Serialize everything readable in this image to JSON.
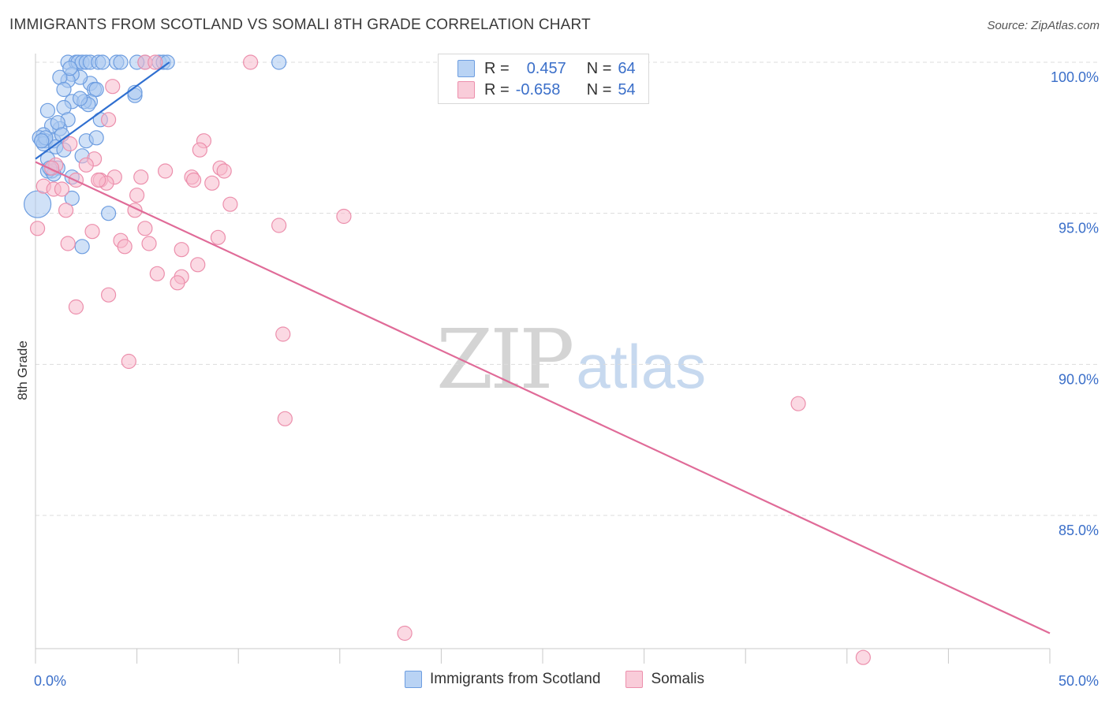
{
  "title": "IMMIGRANTS FROM SCOTLAND VS SOMALI 8TH GRADE CORRELATION CHART",
  "source": "Source: ZipAtlas.com",
  "watermark": {
    "zip": "ZIP",
    "atlas": "atlas"
  },
  "legend_top": {
    "r_label": "R =",
    "n_label": "N =",
    "rows": [
      {
        "r": "0.457",
        "n": "64"
      },
      {
        "r": "-0.658",
        "n": "54"
      }
    ]
  },
  "legend_bottom": [
    "Immigrants from Scotland",
    "Somalis"
  ],
  "colors": {
    "scotland_fill": "#a9c8f0",
    "scotland_stroke": "#6d9de0",
    "scotland_line": "#2f6fd0",
    "somali_fill": "#f7b9cc",
    "somali_stroke": "#ec8fac",
    "somali_line": "#e06b98",
    "axis_text": "#3b6fc9"
  },
  "chart_data": {
    "type": "scatter",
    "title": "IMMIGRANTS FROM SCOTLAND VS SOMALI 8TH GRADE CORRELATION CHART",
    "xlabel": "",
    "ylabel": "8th Grade",
    "xlim": [
      0,
      50
    ],
    "ylim": [
      80.0,
      100.4
    ],
    "x_tick_labels": [
      {
        "v": 0,
        "label": "0.0%"
      },
      {
        "v": 50,
        "label": "50.0%"
      }
    ],
    "x_minor_ticks": [
      0,
      5,
      10,
      15,
      20,
      25,
      30,
      35,
      40,
      45,
      50
    ],
    "y_ticks": [
      {
        "v": 100,
        "label": "100.0%"
      },
      {
        "v": 95,
        "label": "95.0%"
      },
      {
        "v": 90,
        "label": "90.0%"
      },
      {
        "v": 85,
        "label": "85.0%"
      }
    ],
    "grid": true,
    "series": [
      {
        "name": "Immigrants from Scotland",
        "r": 0.457,
        "n": 64,
        "trend": {
          "x0": 0.0,
          "y0": 96.8,
          "x1": 6.6,
          "y1": 100.0
        },
        "points": [
          [
            1.6,
            100.0
          ],
          [
            2.0,
            100.0
          ],
          [
            2.1,
            100.0
          ],
          [
            2.3,
            100.0
          ],
          [
            2.5,
            100.0
          ],
          [
            2.7,
            100.0
          ],
          [
            3.1,
            100.0
          ],
          [
            3.3,
            100.0
          ],
          [
            4.0,
            100.0
          ],
          [
            4.2,
            100.0
          ],
          [
            5.4,
            100.0
          ],
          [
            6.1,
            100.0
          ],
          [
            6.3,
            100.0
          ],
          [
            6.5,
            100.0
          ],
          [
            12.0,
            100.0
          ],
          [
            2.7,
            99.3
          ],
          [
            2.2,
            99.5
          ],
          [
            1.8,
            99.6
          ],
          [
            1.6,
            99.4
          ],
          [
            1.2,
            99.5
          ],
          [
            1.4,
            99.1
          ],
          [
            2.9,
            99.1
          ],
          [
            3.0,
            99.1
          ],
          [
            4.9,
            98.9
          ],
          [
            2.7,
            98.7
          ],
          [
            1.8,
            98.7
          ],
          [
            2.4,
            98.7
          ],
          [
            1.4,
            98.5
          ],
          [
            0.6,
            98.4
          ],
          [
            3.2,
            98.1
          ],
          [
            1.6,
            98.1
          ],
          [
            1.2,
            97.8
          ],
          [
            0.8,
            97.9
          ],
          [
            0.4,
            97.6
          ],
          [
            0.2,
            97.5
          ],
          [
            0.3,
            97.4
          ],
          [
            0.5,
            97.4
          ],
          [
            0.4,
            97.3
          ],
          [
            0.9,
            97.4
          ],
          [
            2.5,
            97.4
          ],
          [
            1.0,
            97.2
          ],
          [
            1.4,
            97.1
          ],
          [
            2.3,
            96.9
          ],
          [
            0.6,
            96.8
          ],
          [
            1.1,
            96.5
          ],
          [
            0.8,
            96.4
          ],
          [
            0.6,
            96.4
          ],
          [
            0.9,
            96.3
          ],
          [
            1.8,
            96.2
          ],
          [
            0.1,
            95.3
          ],
          [
            1.8,
            95.5
          ],
          [
            3.6,
            95.0
          ],
          [
            2.3,
            93.9
          ],
          [
            1.1,
            98.0
          ],
          [
            2.6,
            98.6
          ],
          [
            4.9,
            99.0
          ],
          [
            5.0,
            100.0
          ],
          [
            0.5,
            97.5
          ],
          [
            3.0,
            97.5
          ],
          [
            1.3,
            97.6
          ],
          [
            2.2,
            98.8
          ],
          [
            1.7,
            99.8
          ],
          [
            0.3,
            97.4
          ],
          [
            0.7,
            96.5
          ]
        ],
        "sizes": [
          9,
          9,
          9,
          9,
          9,
          9,
          9,
          9,
          9,
          9,
          9,
          9,
          9,
          9,
          9,
          9,
          9,
          9,
          9,
          9,
          9,
          9,
          9,
          9,
          9,
          9,
          9,
          9,
          9,
          9,
          9,
          9,
          9,
          9,
          9,
          9,
          9,
          9,
          9,
          9,
          9,
          9,
          9,
          9,
          9,
          9,
          9,
          9,
          9,
          17,
          9,
          9,
          9,
          9,
          9,
          9,
          9,
          9,
          9,
          9,
          9,
          9,
          9,
          9
        ]
      },
      {
        "name": "Somalis",
        "r": -0.658,
        "n": 54,
        "trend": {
          "x0": 0.0,
          "y0": 96.7,
          "x1": 50.0,
          "y1": 81.1
        },
        "points": [
          [
            10.6,
            100.0
          ],
          [
            5.4,
            100.0
          ],
          [
            5.9,
            100.0
          ],
          [
            3.8,
            99.2
          ],
          [
            3.6,
            98.1
          ],
          [
            8.3,
            97.4
          ],
          [
            8.1,
            97.1
          ],
          [
            2.9,
            96.8
          ],
          [
            1.0,
            96.6
          ],
          [
            2.5,
            96.6
          ],
          [
            9.1,
            96.5
          ],
          [
            9.3,
            96.4
          ],
          [
            6.4,
            96.4
          ],
          [
            7.7,
            96.2
          ],
          [
            3.9,
            96.2
          ],
          [
            5.2,
            96.2
          ],
          [
            2.0,
            96.1
          ],
          [
            3.2,
            96.1
          ],
          [
            3.5,
            96.0
          ],
          [
            7.8,
            96.1
          ],
          [
            8.7,
            96.0
          ],
          [
            0.4,
            95.9
          ],
          [
            0.9,
            95.8
          ],
          [
            1.3,
            95.8
          ],
          [
            5.0,
            95.6
          ],
          [
            9.6,
            95.3
          ],
          [
            1.5,
            95.1
          ],
          [
            4.9,
            95.1
          ],
          [
            15.2,
            94.9
          ],
          [
            12.0,
            94.6
          ],
          [
            5.4,
            94.5
          ],
          [
            0.1,
            94.5
          ],
          [
            2.8,
            94.4
          ],
          [
            9.0,
            94.2
          ],
          [
            4.2,
            94.1
          ],
          [
            5.6,
            94.0
          ],
          [
            1.6,
            94.0
          ],
          [
            4.4,
            93.9
          ],
          [
            7.2,
            93.8
          ],
          [
            8.0,
            93.3
          ],
          [
            6.0,
            93.0
          ],
          [
            7.2,
            92.9
          ],
          [
            7.0,
            92.7
          ],
          [
            3.6,
            92.3
          ],
          [
            2.0,
            91.9
          ],
          [
            12.2,
            91.0
          ],
          [
            4.6,
            90.1
          ],
          [
            12.3,
            88.2
          ],
          [
            37.6,
            88.7
          ],
          [
            18.2,
            81.1
          ],
          [
            40.8,
            80.3
          ],
          [
            1.7,
            97.3
          ],
          [
            3.1,
            96.1
          ],
          [
            0.8,
            96.5
          ]
        ],
        "sizes": [
          9,
          9,
          9,
          9,
          9,
          9,
          9,
          9,
          9,
          9,
          9,
          9,
          9,
          9,
          9,
          9,
          9,
          9,
          9,
          9,
          9,
          9,
          9,
          9,
          9,
          9,
          9,
          9,
          9,
          9,
          9,
          9,
          9,
          9,
          9,
          9,
          9,
          9,
          9,
          9,
          9,
          9,
          9,
          9,
          9,
          9,
          9,
          9,
          9,
          9,
          9,
          9,
          9,
          9
        ]
      }
    ]
  }
}
